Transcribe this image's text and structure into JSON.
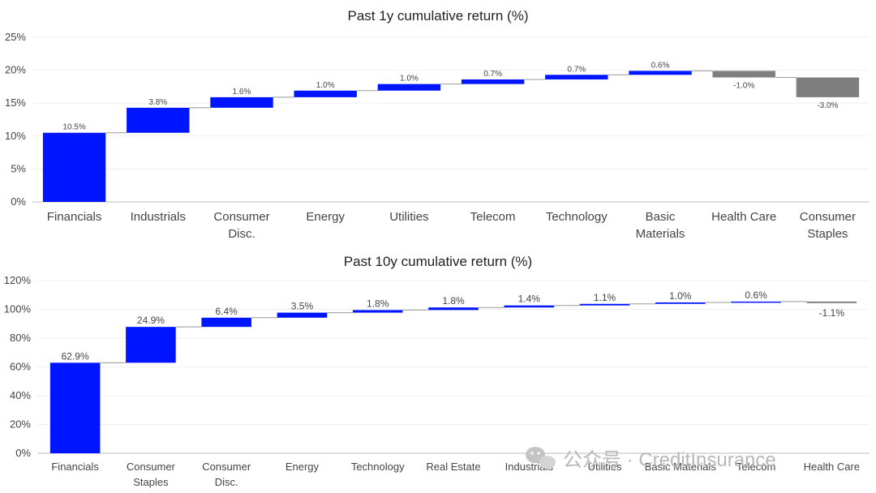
{
  "chart_data": [
    {
      "type": "waterfall",
      "title": "Past 1y cumulative return (%)",
      "ylim": [
        0,
        25
      ],
      "yticks": [
        "0%",
        "5%",
        "10%",
        "15%",
        "20%",
        "25%"
      ],
      "categories": [
        [
          "Financials"
        ],
        [
          "Industrials"
        ],
        [
          "Consumer",
          "Disc."
        ],
        [
          "Energy"
        ],
        [
          "Utilities"
        ],
        [
          "Telecom"
        ],
        [
          "Technology"
        ],
        [
          "Basic",
          "Materials"
        ],
        [
          "Health Care"
        ],
        [
          "Consumer",
          "Staples"
        ]
      ],
      "values": [
        10.5,
        3.8,
        1.6,
        1.0,
        1.0,
        0.7,
        0.7,
        0.6,
        -1.0,
        -3.0
      ],
      "labels": [
        "10.5%",
        "3.8%",
        "1.6%",
        "1.0%",
        "1.0%",
        "0.7%",
        "0.7%",
        "0.6%",
        "-1.0%",
        "-3.0%"
      ],
      "grid": true,
      "colors": {
        "positive": "#0015ff",
        "negative": "#7f7f7f"
      }
    },
    {
      "type": "waterfall",
      "title": "Past 10y cumulative return (%)",
      "ylim": [
        0,
        120
      ],
      "yticks": [
        "0%",
        "20%",
        "40%",
        "60%",
        "80%",
        "100%",
        "120%"
      ],
      "categories": [
        [
          "Financials"
        ],
        [
          "Consumer",
          "Staples"
        ],
        [
          "Consumer",
          "Disc."
        ],
        [
          "Energy"
        ],
        [
          "Technology"
        ],
        [
          "Real Estate"
        ],
        [
          "Industrials"
        ],
        [
          "Utilities"
        ],
        [
          "Basic Materials"
        ],
        [
          "Telecom"
        ],
        [
          "Health Care"
        ]
      ],
      "values": [
        62.9,
        24.9,
        6.4,
        3.5,
        1.8,
        1.8,
        1.4,
        1.1,
        1.0,
        0.6,
        -1.1
      ],
      "labels": [
        "62.9%",
        "24.9%",
        "6.4%",
        "3.5%",
        "1.8%",
        "1.8%",
        "1.4%",
        "1.1%",
        "1.0%",
        "0.6%",
        "-1.1%"
      ],
      "grid": true,
      "colors": {
        "positive": "#0015ff",
        "negative": "#7f7f7f"
      }
    }
  ],
  "watermark": {
    "text": "公众号 · CreditInsurance",
    "icon": "wechat-icon"
  }
}
